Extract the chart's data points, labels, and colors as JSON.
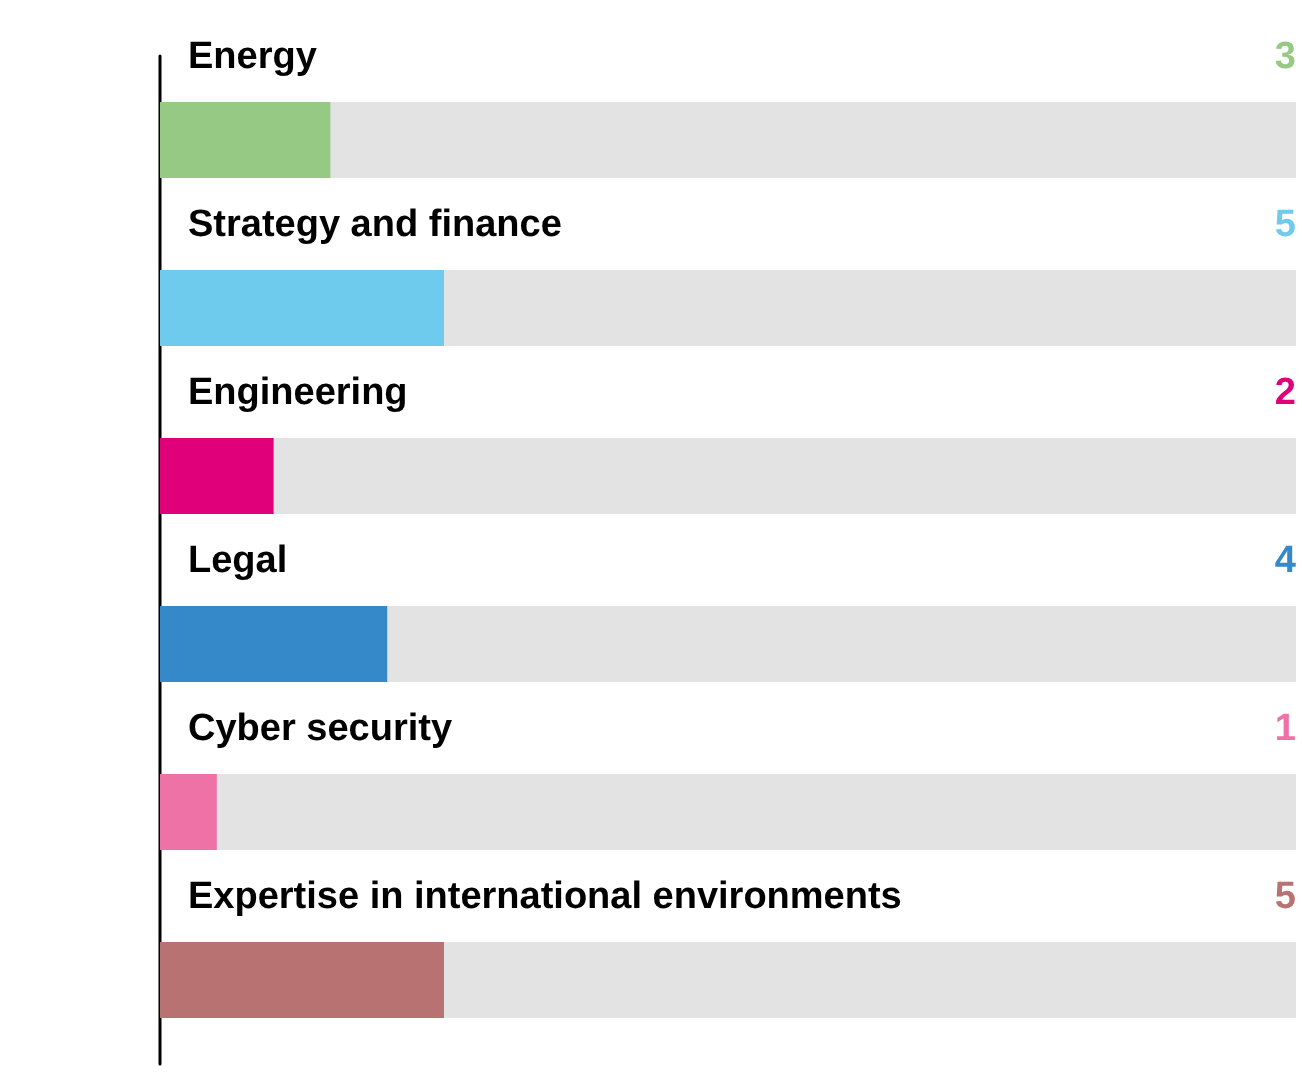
{
  "chart_data": {
    "type": "bar",
    "orientation": "horizontal",
    "categories": [
      "Energy",
      "Strategy and finance",
      "Engineering",
      "Legal",
      "Cyber security",
      "Expertise in international environments"
    ],
    "values": [
      3,
      5,
      2,
      4,
      1,
      5
    ],
    "colors": [
      "#96c983",
      "#6ecbee",
      "#e0007a",
      "#3689c9",
      "#ee72a6",
      "#b87271"
    ],
    "xlim": [
      0,
      20
    ],
    "tick_labels": "y",
    "data_labels": true
  }
}
